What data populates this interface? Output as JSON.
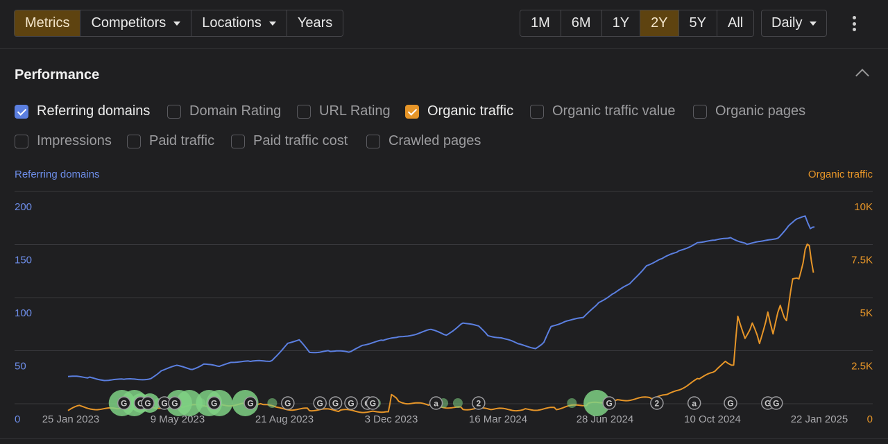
{
  "toolbar": {
    "left_group": [
      {
        "label": "Metrics",
        "active": true,
        "dropdown": false,
        "name": "tab-metrics"
      },
      {
        "label": "Competitors",
        "active": false,
        "dropdown": true,
        "name": "tab-competitors"
      },
      {
        "label": "Locations",
        "active": false,
        "dropdown": true,
        "name": "tab-locations"
      },
      {
        "label": "Years",
        "active": false,
        "dropdown": false,
        "name": "tab-years"
      }
    ],
    "ranges": [
      {
        "label": "1M",
        "active": false
      },
      {
        "label": "6M",
        "active": false
      },
      {
        "label": "1Y",
        "active": false
      },
      {
        "label": "2Y",
        "active": true
      },
      {
        "label": "5Y",
        "active": false
      },
      {
        "label": "All",
        "active": false
      }
    ],
    "interval_label": "Daily",
    "more_icon": "kebab-menu-icon"
  },
  "section": {
    "title": "Performance",
    "collapse_icon": "chevron-up-icon"
  },
  "metrics": [
    {
      "label": "Referring domains",
      "checked": true,
      "color": "blue"
    },
    {
      "label": "Domain Rating",
      "checked": false
    },
    {
      "label": "URL Rating",
      "checked": false
    },
    {
      "label": "Organic traffic",
      "checked": true,
      "color": "orange"
    },
    {
      "label": "Organic traffic value",
      "checked": false
    },
    {
      "label": "Organic pages",
      "checked": false
    },
    {
      "label": "Impressions",
      "checked": false
    },
    {
      "label": "Paid traffic",
      "checked": false
    },
    {
      "label": "Paid traffic cost",
      "checked": false
    },
    {
      "label": "Crawled pages",
      "checked": false
    }
  ],
  "colors": {
    "accent_active": "#5e4310",
    "referring_domains": "#5b7fe0",
    "organic_traffic": "#e69528",
    "event_marker": "#7fd184"
  },
  "chart_data": {
    "type": "line",
    "ylabel_left": "Referring domains",
    "ylabel_right": "Organic traffic",
    "ylim_left": [
      0,
      200
    ],
    "ylim_right": [
      0,
      10000
    ],
    "yticks_left": [
      "0",
      "50",
      "100",
      "150",
      "200"
    ],
    "yticks_right": [
      "0",
      "2.5K",
      "5K",
      "7.5K",
      "10K"
    ],
    "xlim": [
      "2023-01-25",
      "2025-01-22"
    ],
    "x_ticks": [
      "25 Jan 2023",
      "9 May 2023",
      "21 Aug 2023",
      "3 Dec 2023",
      "16 Mar 2024",
      "28 Jun 2024",
      "10 Oct 2024",
      "22 Jan 2025"
    ],
    "grid": true,
    "series": [
      {
        "name": "Referring domains",
        "axis": "left",
        "x": [
          "2023-01-25",
          "2023-02-15",
          "2023-03-01",
          "2023-03-20",
          "2023-04-15",
          "2023-04-25",
          "2023-05-10",
          "2023-05-25",
          "2023-06-05",
          "2023-06-20",
          "2023-07-01",
          "2023-07-20",
          "2023-08-10",
          "2023-08-25",
          "2023-09-05",
          "2023-09-15",
          "2023-10-05",
          "2023-10-25",
          "2023-11-05",
          "2023-11-25",
          "2023-12-10",
          "2023-12-25",
          "2024-01-10",
          "2024-01-25",
          "2024-02-10",
          "2024-02-25",
          "2024-03-05",
          "2024-03-20",
          "2024-04-05",
          "2024-04-20",
          "2024-04-28",
          "2024-05-05",
          "2024-05-20",
          "2024-06-05",
          "2024-06-20",
          "2024-07-05",
          "2024-07-20",
          "2024-08-05",
          "2024-08-20",
          "2024-09-05",
          "2024-09-25",
          "2024-10-10",
          "2024-10-25",
          "2024-11-10",
          "2024-11-25",
          "2024-12-10",
          "2024-12-20",
          "2024-12-28",
          "2025-01-05",
          "2025-01-10",
          "2025-01-14"
        ],
        "values": [
          40,
          39,
          37,
          37,
          38,
          46,
          50,
          47,
          52,
          49,
          54,
          54,
          55,
          72,
          74,
          63,
          64,
          63,
          70,
          74,
          77,
          80,
          84,
          79,
          91,
          87,
          79,
          76,
          70,
          67,
          72,
          87,
          93,
          95,
          110,
          119,
          127,
          145,
          151,
          158,
          167,
          168,
          171,
          165,
          167,
          171,
          182,
          188,
          192,
          179,
          181
        ]
      },
      {
        "name": "Organic traffic",
        "axis": "right",
        "x": [
          "2023-01-25",
          "2023-02-05",
          "2023-02-20",
          "2023-03-15",
          "2023-04-15",
          "2023-05-15",
          "2023-06-15",
          "2023-07-15",
          "2023-08-01",
          "2023-08-15",
          "2023-09-15",
          "2023-10-15",
          "2023-11-15",
          "2023-11-30",
          "2023-12-03",
          "2023-12-10",
          "2023-12-20",
          "2024-01-10",
          "2024-02-10",
          "2024-03-10",
          "2024-04-10",
          "2024-05-10",
          "2024-06-10",
          "2024-07-10",
          "2024-08-10",
          "2024-08-25",
          "2024-09-05",
          "2024-09-25",
          "2024-10-10",
          "2024-10-20",
          "2024-10-28",
          "2024-11-01",
          "2024-11-08",
          "2024-11-15",
          "2024-11-22",
          "2024-11-30",
          "2024-12-05",
          "2024-12-12",
          "2024-12-18",
          "2024-12-24",
          "2024-12-30",
          "2025-01-05",
          "2025-01-09",
          "2025-01-13"
        ],
        "values": [
          400,
          600,
          500,
          450,
          550,
          600,
          650,
          700,
          700,
          500,
          450,
          400,
          350,
          400,
          1100,
          850,
          750,
          650,
          500,
          450,
          450,
          500,
          700,
          900,
          1000,
          1100,
          1400,
          1900,
          2200,
          2800,
          2500,
          4800,
          3900,
          4400,
          3600,
          5100,
          3900,
          5500,
          4600,
          6500,
          6800,
          7800,
          8200,
          6900
        ]
      }
    ],
    "event_markers": [
      {
        "x": "2023-03-20",
        "label": "G"
      },
      {
        "x": "2023-04-05",
        "label": "G"
      },
      {
        "x": "2023-04-12",
        "label": "G"
      },
      {
        "x": "2023-04-28",
        "label": "G"
      },
      {
        "x": "2023-05-08",
        "label": "G"
      },
      {
        "x": "2023-06-15",
        "label": "G"
      },
      {
        "x": "2023-07-20",
        "label": "G"
      },
      {
        "x": "2023-08-25",
        "label": "G"
      },
      {
        "x": "2023-09-25",
        "label": "G"
      },
      {
        "x": "2023-10-10",
        "label": "G"
      },
      {
        "x": "2023-10-25",
        "label": "G"
      },
      {
        "x": "2023-11-10",
        "label": "G"
      },
      {
        "x": "2023-11-15",
        "label": "G"
      },
      {
        "x": "2024-01-15",
        "label": "a"
      },
      {
        "x": "2024-02-25",
        "label": "2"
      },
      {
        "x": "2024-06-30",
        "label": "G"
      },
      {
        "x": "2024-08-15",
        "label": "2"
      },
      {
        "x": "2024-09-20",
        "label": "a"
      },
      {
        "x": "2024-10-25",
        "label": "G"
      },
      {
        "x": "2024-11-30",
        "label": "G"
      },
      {
        "x": "2024-12-08",
        "label": "G"
      }
    ],
    "activity_bubbles": [
      {
        "x": "2023-03-18",
        "size": 3
      },
      {
        "x": "2023-03-30",
        "size": 3
      },
      {
        "x": "2023-04-05",
        "size": 2
      },
      {
        "x": "2023-04-14",
        "size": 2
      },
      {
        "x": "2023-04-22",
        "size": 1
      },
      {
        "x": "2023-05-02",
        "size": 1
      },
      {
        "x": "2023-05-12",
        "size": 3
      },
      {
        "x": "2023-05-22",
        "size": 3
      },
      {
        "x": "2023-06-02",
        "size": 1
      },
      {
        "x": "2023-06-10",
        "size": 3
      },
      {
        "x": "2023-06-20",
        "size": 3
      },
      {
        "x": "2023-07-15",
        "size": 3
      },
      {
        "x": "2023-08-10",
        "size": 1
      },
      {
        "x": "2023-11-18",
        "size": 1
      },
      {
        "x": "2024-01-22",
        "size": 1
      },
      {
        "x": "2024-02-05",
        "size": 1
      },
      {
        "x": "2024-05-25",
        "size": 1
      },
      {
        "x": "2024-06-18",
        "size": 3
      }
    ]
  }
}
